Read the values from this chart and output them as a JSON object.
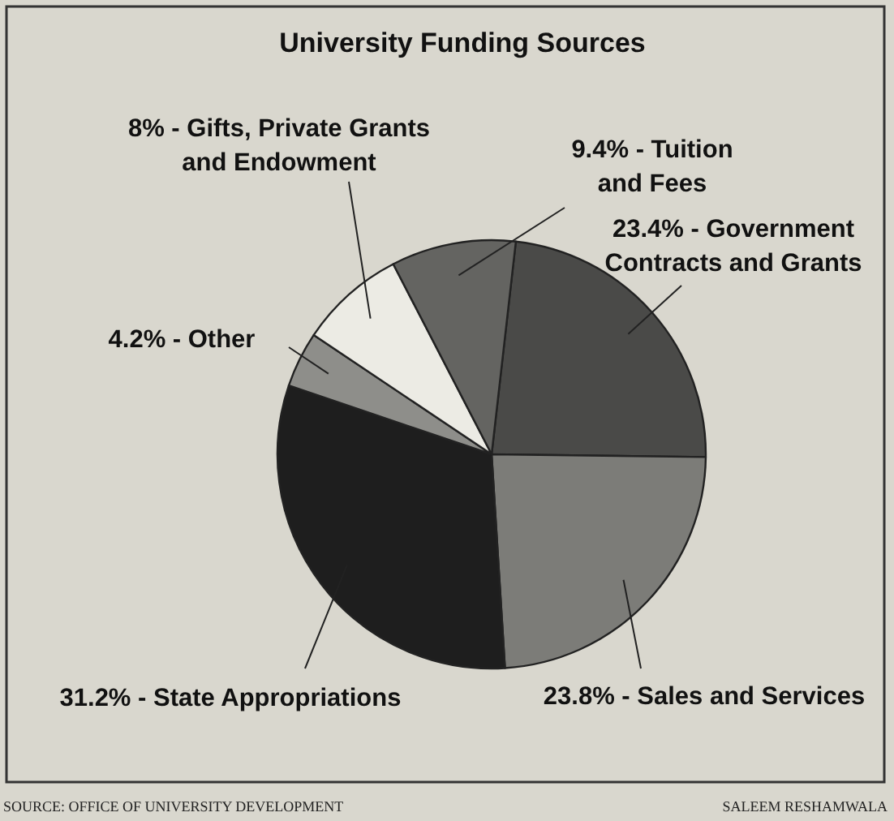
{
  "chart_data": {
    "type": "pie",
    "title": "University Funding Sources",
    "categories": [
      "23.4% - Government Contracts and Grants",
      "23.8% - Sales and Services",
      "31.2% - State Appropriations",
      "4.2% - Other",
      "8% - Gifts, Private Grants and Endowment",
      "9.4% - Tuition and Fees"
    ],
    "values": [
      23.4,
      23.8,
      31.2,
      4.2,
      8,
      9.4
    ],
    "colors": [
      "#4a4a48",
      "#7c7c78",
      "#1e1e1e",
      "#8e8e8a",
      "#ecebe4",
      "#646461"
    ],
    "annotations": [
      "SOURCE: OFFICE OF UNIVERSITY DEVELOPMENT",
      "SALEEM RESHAMWALA"
    ]
  }
}
